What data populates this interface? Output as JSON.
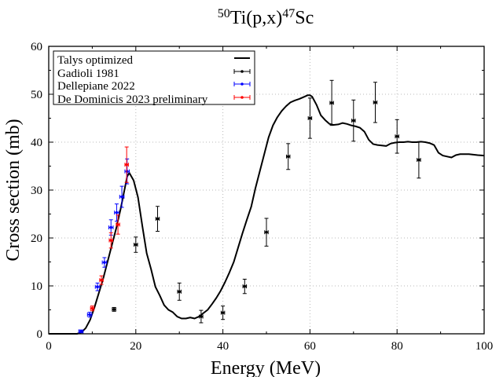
{
  "chart_data": {
    "type": "line",
    "title": {
      "sup1": "50",
      "base1": "Ti(p,x)",
      "sup2": "47",
      "base2": "Sc"
    },
    "xlabel": "Energy (MeV)",
    "ylabel": "Cross section (mb)",
    "xlim": [
      0,
      100
    ],
    "ylim": [
      0,
      60
    ],
    "xticks": [
      0,
      20,
      40,
      60,
      80,
      100
    ],
    "yticks": [
      0,
      10,
      20,
      30,
      40,
      50,
      60
    ],
    "grid": true,
    "legend_position": "top-left",
    "series": [
      {
        "name": "Talys optimized",
        "kind": "line",
        "color": "#000000",
        "x": [
          0,
          6.5,
          7.5,
          8.5,
          9.5,
          10.5,
          11.5,
          12.5,
          13.5,
          14.5,
          15.5,
          16.5,
          17.5,
          18.0,
          18.5,
          19.5,
          20.5,
          21.5,
          22.5,
          23.5,
          24.5,
          25.5,
          26.5,
          27.5,
          28.5,
          29.5,
          30.5,
          31.5,
          32.5,
          33.5,
          34.5,
          35.5,
          36.5,
          37.5,
          38.5,
          39.5,
          40.5,
          41.5,
          42.5,
          43.5,
          44.5,
          45.5,
          46.5,
          47.5,
          48.5,
          49.5,
          50.5,
          51.5,
          52.5,
          53.5,
          54.5,
          55.5,
          56.5,
          57.5,
          58.5,
          59.5,
          60.0,
          60.5,
          61.5,
          62.5,
          63.5,
          64.5,
          65.5,
          66.5,
          67.5,
          68.5,
          69.5,
          70.5,
          71.5,
          72.5,
          73.5,
          74.5,
          75.5,
          76.5,
          77.5,
          78.5,
          79.5,
          80.5,
          81.5,
          82.5,
          83.5,
          84.5,
          85.5,
          86.5,
          87.5,
          88.5,
          89.5,
          90.5,
          91.5,
          92.5,
          93.5,
          94.5,
          95.5,
          96.5,
          97.5,
          98.5,
          100
        ],
        "y": [
          0,
          0,
          0.3,
          1.2,
          2.9,
          5.5,
          8.5,
          11.5,
          15.0,
          18.5,
          22.0,
          26.0,
          30.5,
          32.8,
          33.6,
          32.0,
          28.5,
          22.5,
          16.8,
          13.5,
          9.8,
          8.0,
          6.0,
          5.0,
          4.5,
          3.6,
          3.2,
          3.2,
          3.4,
          3.2,
          3.6,
          4.3,
          5.0,
          6.2,
          7.5,
          9.0,
          10.8,
          12.8,
          15.0,
          18.0,
          21.0,
          23.8,
          26.5,
          30.5,
          34.0,
          37.5,
          41.0,
          43.5,
          45.2,
          46.5,
          47.5,
          48.3,
          48.7,
          49.0,
          49.4,
          49.8,
          49.8,
          49.5,
          47.8,
          45.6,
          44.6,
          43.8,
          43.6,
          43.7,
          44.0,
          43.8,
          43.5,
          43.3,
          43.0,
          42.2,
          40.5,
          39.6,
          39.4,
          39.3,
          39.2,
          39.7,
          39.9,
          40.0,
          40.0,
          40.1,
          40.0,
          40.0,
          40.1,
          40.0,
          39.8,
          39.4,
          37.8,
          37.2,
          37.0,
          36.8,
          37.3,
          37.5,
          37.5,
          37.5,
          37.4,
          37.3,
          37.2
        ]
      },
      {
        "name": "Gadioli 1981",
        "kind": "errorbar",
        "color": "#000000",
        "x": [
          15,
          20,
          25,
          30,
          35,
          40,
          45,
          50,
          55,
          60,
          65,
          70,
          75,
          80,
          85
        ],
        "y": [
          5.1,
          18.6,
          24.0,
          8.8,
          3.6,
          4.4,
          9.9,
          21.2,
          37.0,
          45.0,
          48.2,
          44.5,
          48.3,
          41.2,
          36.3
        ],
        "yerr": [
          0.4,
          1.6,
          2.6,
          1.8,
          1.3,
          1.4,
          1.5,
          2.9,
          2.7,
          4.2,
          4.7,
          4.3,
          4.2,
          3.5,
          3.8
        ],
        "xerr": [
          0.4,
          0.4,
          0.4,
          0.4,
          0.4,
          0.4,
          0.4,
          0.4,
          0.4,
          0.4,
          0.4,
          0.4,
          0.4,
          0.4,
          0.4
        ]
      },
      {
        "name": "Dellepiane 2022",
        "kind": "errorbar",
        "color": "#0000ff",
        "x": [
          7.4,
          9.4,
          11.2,
          12.8,
          14.3,
          15.6,
          16.8,
          18.0
        ],
        "y": [
          0.5,
          4.0,
          9.8,
          14.9,
          22.2,
          25.3,
          28.6,
          33.9
        ],
        "yerr": [
          0.3,
          0.5,
          0.8,
          1.0,
          1.6,
          1.8,
          2.2,
          2.6
        ],
        "xerr": [
          0.5,
          0.5,
          0.5,
          0.5,
          0.5,
          0.5,
          0.5,
          0.5
        ]
      },
      {
        "name": "De Dominicis 2023 preliminary",
        "kind": "errorbar",
        "color": "#ff0000",
        "x": [
          10.0,
          12.1,
          14.3,
          15.9,
          17.9
        ],
        "y": [
          5.3,
          11.2,
          19.5,
          22.8,
          35.3
        ],
        "yerr": [
          0.5,
          0.9,
          1.6,
          2.0,
          3.7
        ],
        "xerr": [
          0.4,
          0.4,
          0.4,
          0.4,
          0.4
        ]
      }
    ]
  }
}
